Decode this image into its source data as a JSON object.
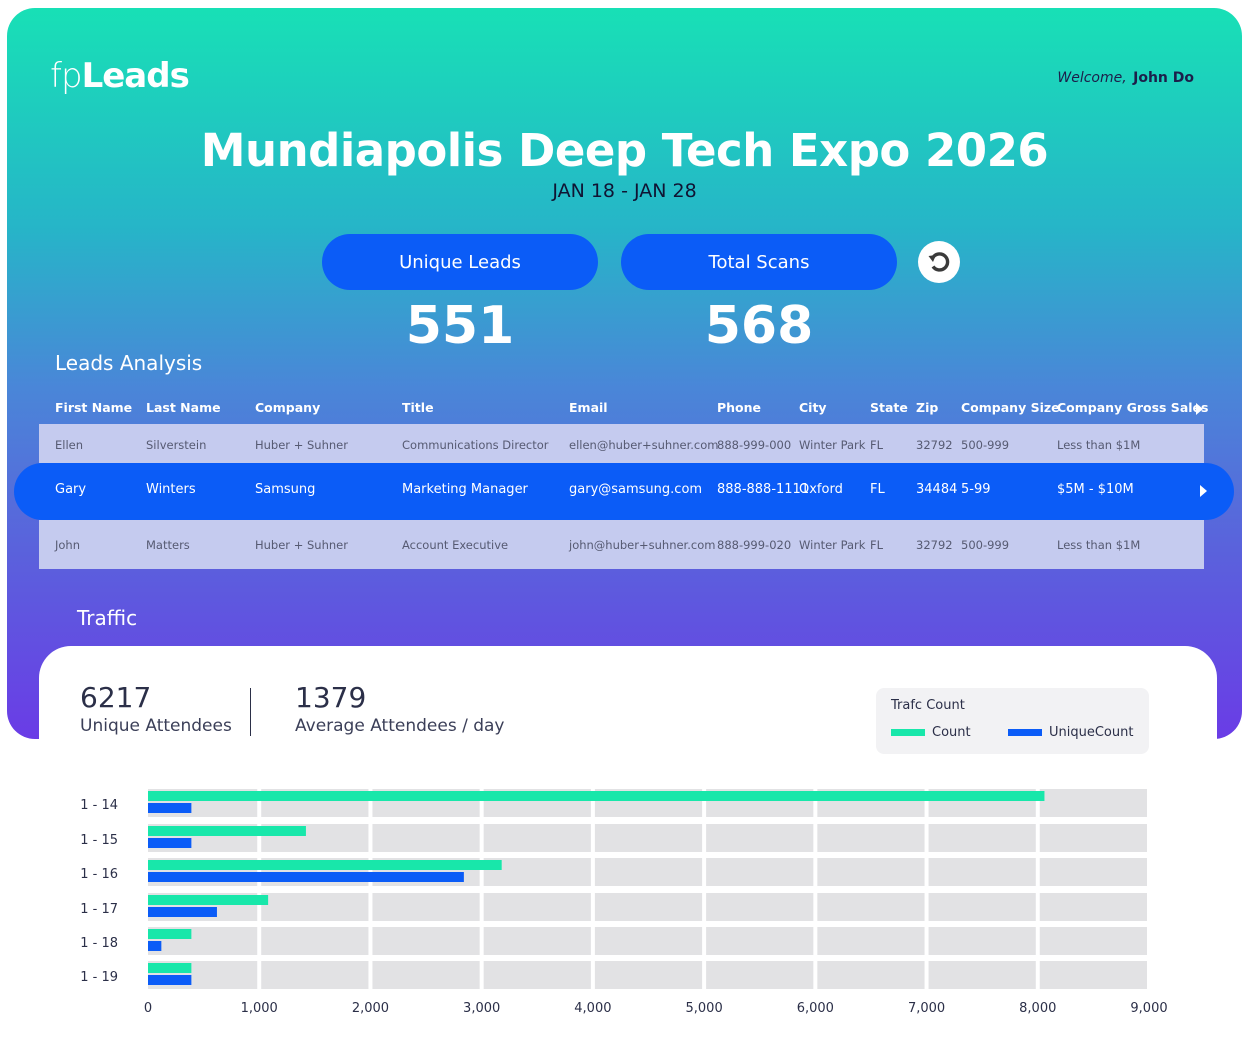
{
  "app": {
    "logo_fp": "fp",
    "logo_leads": "Leads"
  },
  "user": {
    "welcome_label": "Welcome,",
    "name": "John Do"
  },
  "event": {
    "title": "Mundiapolis Deep Tech Expo 2026",
    "dates": "JAN 18 - JAN 28"
  },
  "stats": {
    "unique_leads_label": "Unique Leads",
    "unique_leads_value": "551",
    "total_scans_label": "Total Scans",
    "total_scans_value": "568"
  },
  "leads": {
    "title": "Leads Analysis",
    "columns": [
      "First Name",
      "Last Name",
      "Company",
      "Title",
      "Email",
      "Phone",
      "City",
      "State",
      "Zip",
      "Company Size",
      "Company Gross Sales"
    ],
    "rows": [
      [
        "Ellen",
        "Silverstein",
        "Huber + Suhner",
        "Communications Director",
        "ellen@huber+suhner.com",
        "888-999-000",
        "Winter Park",
        "FL",
        "32792",
        "500-999",
        "Less than $1M"
      ],
      [
        "Gary",
        "Winters",
        "Samsung",
        "Marketing Manager",
        "gary@samsung.com",
        "888-888-1111",
        "Oxford",
        "FL",
        "34484",
        "5-99",
        "$5M - $10M"
      ],
      [
        "John",
        "Matters",
        "Huber + Suhner",
        "Account Executive",
        "john@huber+suhner.com",
        "888-999-020",
        "Winter Park",
        "FL",
        "32792",
        "500-999",
        "Less than $1M"
      ]
    ]
  },
  "traffic": {
    "title": "Traffic",
    "unique_attendees_value": "6217",
    "unique_attendees_label": "Unique Attendees",
    "avg_attendees_value": "1379",
    "avg_attendees_label": "Average Attendees / day"
  },
  "colors": {
    "count": "#18e7aa",
    "unique_count": "#0b5cf7",
    "accent": "#0b5cf7"
  },
  "chart_data": {
    "type": "bar",
    "orientation": "horizontal",
    "legend_title": "Trafc Count",
    "legend_placement": "top-right",
    "categories": [
      "1 - 14",
      "1 - 15",
      "1 - 16",
      "1 - 17",
      "1 - 18",
      "1 - 19"
    ],
    "series": [
      {
        "name": "Count",
        "color": "#18e7aa",
        "values": [
          8060,
          1420,
          3180,
          1080,
          390,
          390
        ]
      },
      {
        "name": "UniqueCount",
        "color": "#0b5cf7",
        "values": [
          390,
          390,
          2840,
          620,
          120,
          390
        ]
      }
    ],
    "xlim": [
      0,
      9000
    ],
    "x_ticks": [
      "0",
      "1,000",
      "2,000",
      "3,000",
      "4,000",
      "5,000",
      "6,000",
      "7,000",
      "8,000",
      "9,000"
    ],
    "grid": true
  }
}
